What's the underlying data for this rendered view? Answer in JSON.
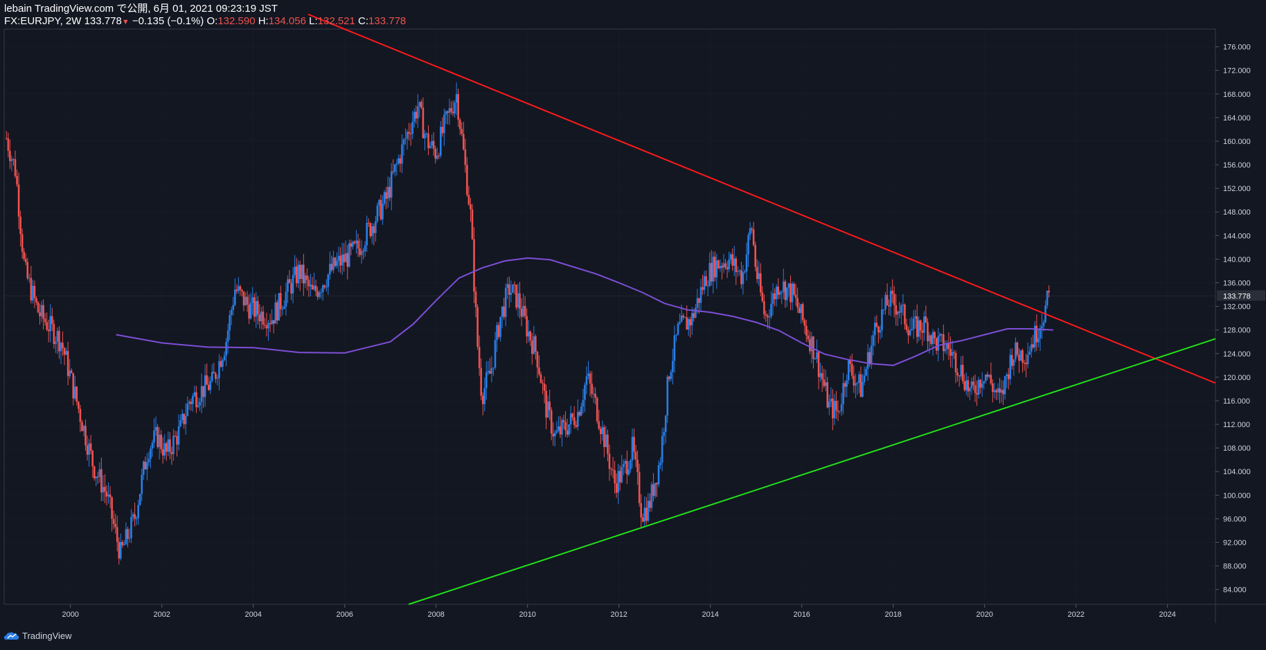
{
  "header": {
    "published": "lebain TradingView.com で公開, 6月 01, 2021 09:23:19 JST",
    "symbol": "FX:EURJPY, 2W",
    "last": "133.778",
    "arrow": "▼",
    "change": "−0.135 (−0.1%)",
    "o_label": "O:",
    "o_value": "132.590",
    "h_label": "H:",
    "h_value": "134.056",
    "l_label": "L:",
    "l_value": "132.521",
    "c_label": "C:",
    "c_value": "133.778"
  },
  "brand": {
    "name": "TradingView"
  },
  "colors": {
    "background": "#131722",
    "up": "#2a7ee6",
    "down": "#ef5350",
    "resistance": "#ff1a1a",
    "support": "#22e11a",
    "ma": "#7e4fd8",
    "axis_text": "#d1d4dc",
    "grid": "#2a2e39"
  },
  "chart_data": {
    "type": "candlestick",
    "title": "FX:EURJPY, 2W",
    "xlabel": "",
    "ylabel": "",
    "x_ticks": [
      "2000",
      "2002",
      "2004",
      "2006",
      "2008",
      "2010",
      "2012",
      "2014",
      "2016",
      "2018",
      "2020",
      "2022",
      "2024"
    ],
    "y_ticks": [
      "84.000",
      "88.000",
      "92.000",
      "96.000",
      "100.000",
      "104.000",
      "108.000",
      "112.000",
      "116.000",
      "120.000",
      "124.000",
      "128.000",
      "132.000",
      "136.000",
      "140.000",
      "144.000",
      "148.000",
      "152.000",
      "156.000",
      "160.000",
      "164.000",
      "168.000",
      "172.000",
      "176.000"
    ],
    "xlim": [
      1998.55,
      2025.05
    ],
    "ylim": [
      81.5,
      179.0
    ],
    "current_price": 133.778,
    "current_price_label": "133.778",
    "price_path": [
      [
        1998.6,
        160.5
      ],
      [
        1998.8,
        155
      ],
      [
        1999.0,
        138
      ],
      [
        1999.3,
        131
      ],
      [
        1999.6,
        128
      ],
      [
        1999.8,
        126
      ],
      [
        2000.0,
        120
      ],
      [
        2000.2,
        114
      ],
      [
        2000.5,
        105
      ],
      [
        2000.8,
        100
      ],
      [
        2001.0,
        93
      ],
      [
        2001.1,
        90
      ],
      [
        2001.4,
        96
      ],
      [
        2001.7,
        108
      ],
      [
        2001.9,
        110
      ],
      [
        2002.1,
        107
      ],
      [
        2002.4,
        111
      ],
      [
        2002.6,
        116
      ],
      [
        2002.9,
        118
      ],
      [
        2003.1,
        119
      ],
      [
        2003.4,
        126
      ],
      [
        2003.6,
        135
      ],
      [
        2003.9,
        132
      ],
      [
        2004.1,
        131
      ],
      [
        2004.4,
        130
      ],
      [
        2004.7,
        134
      ],
      [
        2005.0,
        138
      ],
      [
        2005.3,
        134
      ],
      [
        2005.5,
        136
      ],
      [
        2005.8,
        139
      ],
      [
        2006.0,
        140
      ],
      [
        2006.3,
        142
      ],
      [
        2006.6,
        146
      ],
      [
        2006.9,
        150
      ],
      [
        2007.1,
        155
      ],
      [
        2007.4,
        162
      ],
      [
        2007.6,
        166
      ],
      [
        2007.8,
        160
      ],
      [
        2008.0,
        158
      ],
      [
        2008.2,
        163
      ],
      [
        2008.45,
        168
      ],
      [
        2008.6,
        158
      ],
      [
        2008.75,
        148
      ],
      [
        2008.9,
        126
      ],
      [
        2009.0,
        117
      ],
      [
        2009.2,
        121
      ],
      [
        2009.4,
        130
      ],
      [
        2009.6,
        135
      ],
      [
        2009.8,
        133
      ],
      [
        2010.0,
        128
      ],
      [
        2010.2,
        124
      ],
      [
        2010.4,
        115
      ],
      [
        2010.6,
        110
      ],
      [
        2010.9,
        112
      ],
      [
        2011.1,
        114
      ],
      [
        2011.3,
        120
      ],
      [
        2011.5,
        115
      ],
      [
        2011.7,
        109
      ],
      [
        2011.9,
        102
      ],
      [
        2012.1,
        104
      ],
      [
        2012.3,
        108
      ],
      [
        2012.5,
        97
      ],
      [
        2012.65,
        98
      ],
      [
        2012.9,
        106
      ],
      [
        2013.1,
        121
      ],
      [
        2013.3,
        128
      ],
      [
        2013.6,
        130
      ],
      [
        2013.9,
        137
      ],
      [
        2014.1,
        139
      ],
      [
        2014.4,
        140
      ],
      [
        2014.7,
        137
      ],
      [
        2014.9,
        146
      ],
      [
        2015.0,
        138
      ],
      [
        2015.2,
        130
      ],
      [
        2015.5,
        136
      ],
      [
        2015.8,
        134
      ],
      [
        2016.0,
        130
      ],
      [
        2016.3,
        124
      ],
      [
        2016.6,
        115
      ],
      [
        2016.8,
        114
      ],
      [
        2017.0,
        122
      ],
      [
        2017.3,
        118
      ],
      [
        2017.6,
        128
      ],
      [
        2017.9,
        133
      ],
      [
        2018.1,
        132
      ],
      [
        2018.4,
        128
      ],
      [
        2018.7,
        129
      ],
      [
        2018.9,
        126
      ],
      [
        2019.2,
        125
      ],
      [
        2019.5,
        121
      ],
      [
        2019.7,
        117
      ],
      [
        2020.0,
        121
      ],
      [
        2020.2,
        118
      ],
      [
        2020.35,
        116
      ],
      [
        2020.6,
        124
      ],
      [
        2020.9,
        124
      ],
      [
        2021.1,
        127
      ],
      [
        2021.3,
        131
      ],
      [
        2021.42,
        133.8
      ]
    ],
    "moving_average": {
      "name": "MA",
      "points": [
        [
          2001.0,
          127.2
        ],
        [
          2002.0,
          125.8
        ],
        [
          2003.0,
          125.1
        ],
        [
          2004.0,
          125
        ],
        [
          2005.0,
          124.2
        ],
        [
          2006.0,
          124.1
        ],
        [
          2007.0,
          126
        ],
        [
          2007.5,
          129
        ],
        [
          2008.0,
          133
        ],
        [
          2008.5,
          136.8
        ],
        [
          2009.0,
          138.5
        ],
        [
          2009.5,
          139.7
        ],
        [
          2010.0,
          140.2
        ],
        [
          2010.5,
          139.9
        ],
        [
          2011.0,
          138.7
        ],
        [
          2011.5,
          137.5
        ],
        [
          2012.0,
          136
        ],
        [
          2012.5,
          134.4
        ],
        [
          2013.0,
          132.5
        ],
        [
          2013.5,
          131.4
        ],
        [
          2014.0,
          131
        ],
        [
          2014.5,
          130.3
        ],
        [
          2015.0,
          129.3
        ],
        [
          2015.5,
          127.9
        ],
        [
          2016.0,
          125.8
        ],
        [
          2016.5,
          123.9
        ],
        [
          2017.0,
          123
        ],
        [
          2017.5,
          122.3
        ],
        [
          2018.0,
          122
        ],
        [
          2018.5,
          123.6
        ],
        [
          2019.0,
          125.4
        ],
        [
          2019.5,
          126.2
        ],
        [
          2020.0,
          127.2
        ],
        [
          2020.5,
          128.2
        ],
        [
          2021.0,
          128.2
        ],
        [
          2021.5,
          128
        ]
      ]
    },
    "trendlines": [
      {
        "name": "resistance",
        "x": [
          2005.2,
          2025.05
        ],
        "y": [
          181.5,
          119.0
        ]
      },
      {
        "name": "support",
        "x": [
          2007.4,
          2025.05
        ],
        "y": [
          81.5,
          126.5
        ]
      }
    ]
  }
}
